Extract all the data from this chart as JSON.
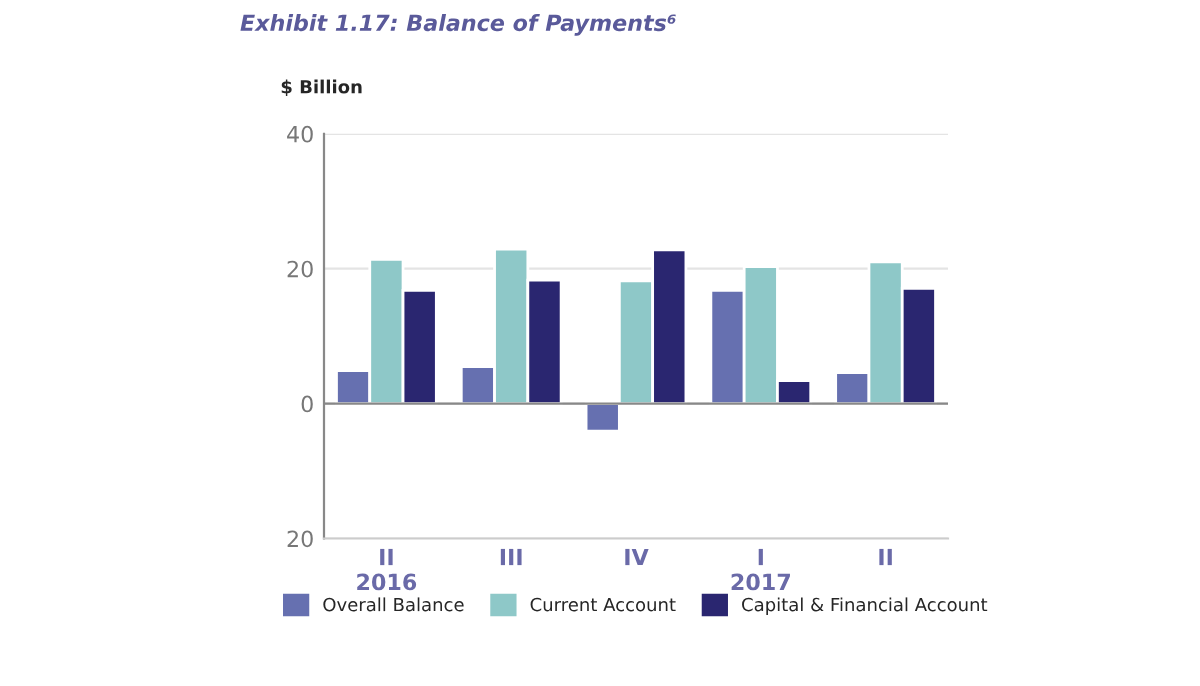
{
  "chart_data": {
    "type": "bar",
    "title": "Exhibit 1.17: Balance of Payments⁶",
    "ylabel": "$ Billion",
    "categories": [
      "II\n2016",
      "III",
      "IV",
      "I\n2017",
      "II"
    ],
    "series": [
      {
        "name": "Overall Balance",
        "color": "#6670b0",
        "values": [
          4.9,
          5.5,
          -4.1,
          16.8,
          4.6
        ]
      },
      {
        "name": "Current Account",
        "color": "#8ec8c8",
        "values": [
          21.4,
          22.9,
          18.2,
          20.3,
          21.0
        ]
      },
      {
        "name": "Capital & Financial Account",
        "color": "#2a2670",
        "values": [
          16.8,
          18.3,
          22.8,
          3.4,
          17.1
        ]
      }
    ],
    "ylim": [
      -20,
      40
    ],
    "yticks": [
      {
        "value": -20,
        "label": "20"
      },
      0,
      20,
      40
    ],
    "grid": "y",
    "legend": "bottom"
  }
}
